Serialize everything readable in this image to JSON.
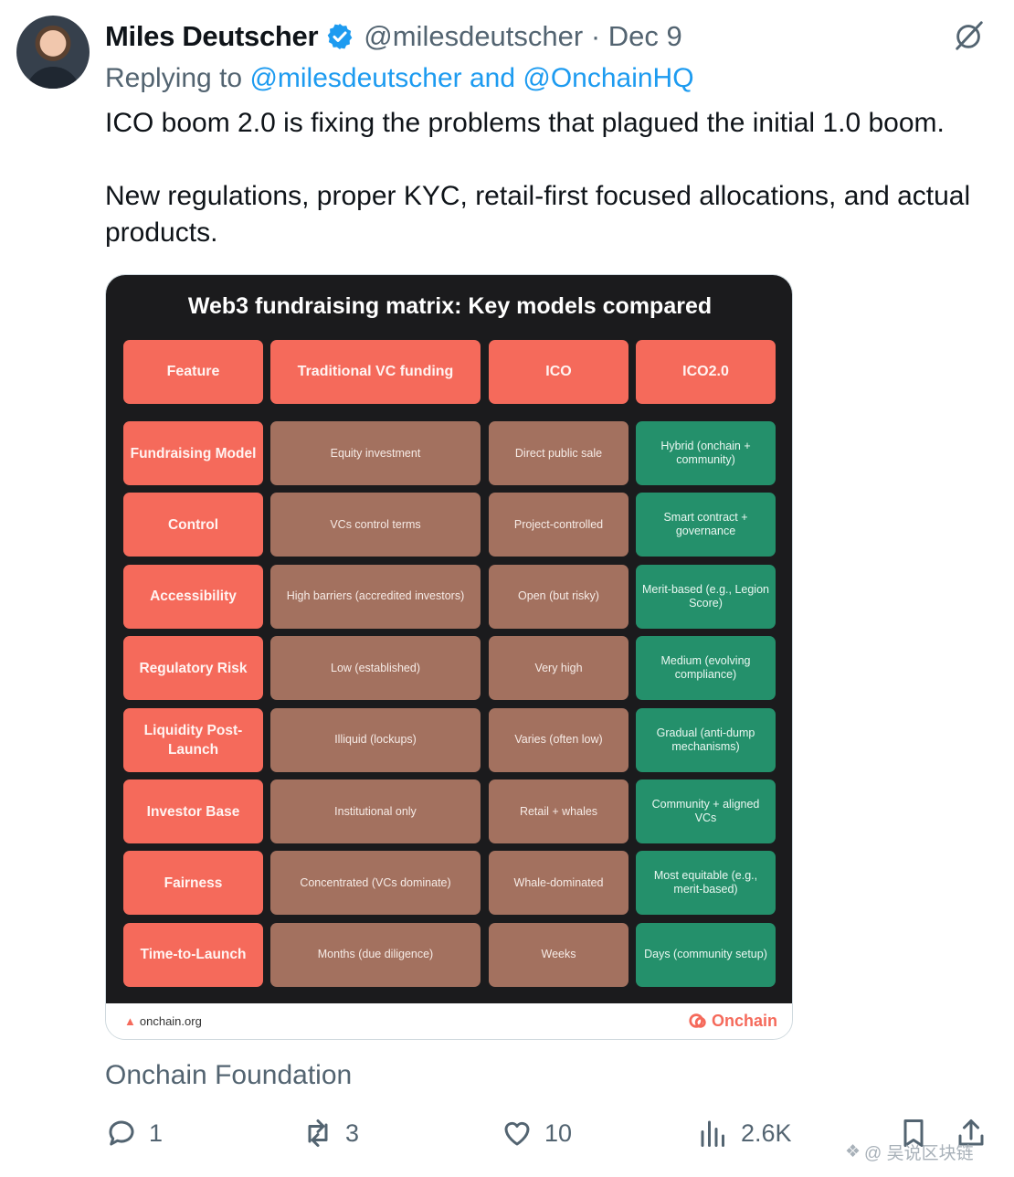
{
  "author": {
    "name": "Miles Deutscher",
    "handle_date": "@milesdeutscher · Dec 9"
  },
  "reply": {
    "prefix": "Replying to ",
    "mentions": "@milesdeutscher and @OnchainHQ"
  },
  "tweet": {
    "line1": "ICO boom 2.0 is fixing the problems that plagued the initial 1.0 boom.",
    "line2": "New regulations, proper KYC, retail-first focused allocations, and actual products."
  },
  "card": {
    "title": "Web3 fundraising matrix: Key models compared",
    "headers": [
      "Feature",
      "Traditional VC funding",
      "ICO",
      "ICO2.0"
    ],
    "rows": [
      [
        "Fundraising Model",
        "Equity investment",
        "Direct public sale",
        "Hybrid (onchain + community)"
      ],
      [
        "Control",
        "VCs control terms",
        "Project-controlled",
        "Smart contract + governance"
      ],
      [
        "Accessibility",
        "High barriers (accredited investors)",
        "Open (but risky)",
        "Merit-based (e.g., Legion Score)"
      ],
      [
        "Regulatory Risk",
        "Low (established)",
        "Very high",
        "Medium (evolving compliance)"
      ],
      [
        "Liquidity Post-Launch",
        "Illiquid (lockups)",
        "Varies (often low)",
        "Gradual (anti-dump mechanisms)"
      ],
      [
        "Investor Base",
        "Institutional only",
        "Retail + whales",
        "Community + aligned VCs"
      ],
      [
        "Fairness",
        "Concentrated (VCs dominate)",
        "Whale-dominated",
        "Most equitable (e.g., merit-based)"
      ],
      [
        "Time-to-Launch",
        "Months (due diligence)",
        "Weeks",
        "Days (community setup)"
      ]
    ],
    "footer_site": "onchain.org",
    "footer_brand": "Onchain"
  },
  "source_label": "Onchain Foundation",
  "actions": {
    "replies": "1",
    "reposts": "3",
    "likes": "10",
    "views": "2.6K"
  },
  "watermark": "@ 吴说区块链",
  "colors": {
    "feature_red": "#f56a5b",
    "vc_brown": "#a3715f",
    "ico2_green": "#24906b",
    "link_blue": "#1d9bf0",
    "verified_blue": "#1d9bf0"
  }
}
